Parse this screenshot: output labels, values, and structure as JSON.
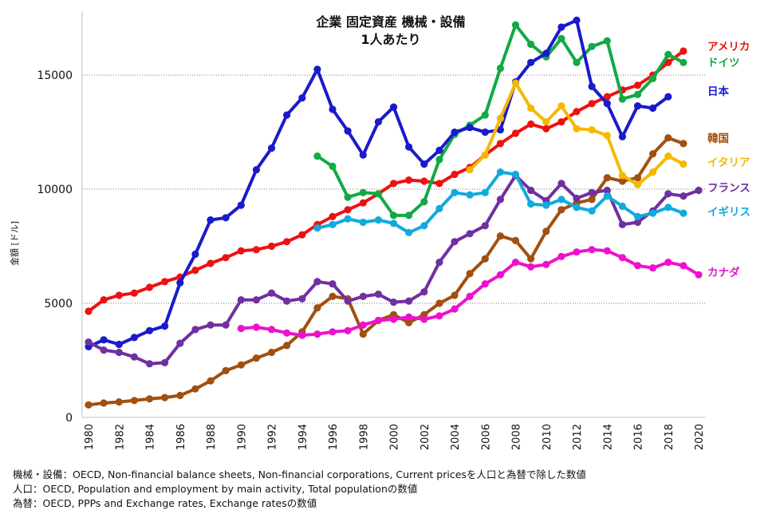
{
  "chart_data": {
    "type": "line",
    "title": [
      "企業 固定資産 機械・設備",
      "1人あたり"
    ],
    "ylabel": "金額 [ドル]",
    "xlabel": "",
    "xlim": [
      1980,
      2020
    ],
    "ylim": [
      0,
      17800
    ],
    "yticks": [
      0,
      5000,
      10000,
      15000
    ],
    "xticks": [
      1980,
      1982,
      1984,
      1986,
      1988,
      1990,
      1992,
      1994,
      1996,
      1998,
      2000,
      2002,
      2004,
      2006,
      2008,
      2010,
      2012,
      2014,
      2016,
      2018,
      2020
    ],
    "grid": "horizontal-dotted",
    "legend": "right (labels at line ends)",
    "series": [
      {
        "name": "アメリカ",
        "color": "#ee1111",
        "start": 1980,
        "values": [
          4650,
          5150,
          5350,
          5450,
          5700,
          5950,
          6150,
          6450,
          6750,
          7000,
          7300,
          7350,
          7500,
          7700,
          8000,
          8450,
          8800,
          9100,
          9400,
          9800,
          10250,
          10400,
          10350,
          10250,
          10650,
          10950,
          11500,
          12000,
          12450,
          12850,
          12650,
          12950,
          13400,
          13750,
          14050,
          14350,
          14550,
          15000,
          15550,
          16050
        ]
      },
      {
        "name": "ドイツ",
        "color": "#11aa44",
        "start": 1995,
        "values": [
          11450,
          11000,
          9650,
          9850,
          9800,
          8850,
          8850,
          9450,
          11300,
          12400,
          12800,
          13250,
          15300,
          17200,
          16350,
          15800,
          16600,
          15550,
          16250,
          16500,
          13950,
          14150,
          14850,
          15900,
          15550
        ]
      },
      {
        "name": "日本",
        "color": "#1a1acc",
        "start": 1980,
        "values": [
          3100,
          3400,
          3200,
          3500,
          3800,
          4000,
          5900,
          7150,
          8650,
          8750,
          9300,
          10850,
          11800,
          13250,
          14000,
          15250,
          13500,
          12550,
          11500,
          12950,
          13600,
          11850,
          11100,
          11700,
          12500,
          12700,
          12500,
          12600,
          14700,
          15550,
          15950,
          17100,
          17400,
          14500,
          13750,
          12300,
          13650,
          13550,
          14050
        ]
      },
      {
        "name": "韓国",
        "color": "#a05010",
        "start": 1980,
        "values": [
          550,
          630,
          680,
          740,
          810,
          870,
          960,
          1250,
          1600,
          2050,
          2300,
          2600,
          2850,
          3150,
          3750,
          4800,
          5300,
          5200,
          3650,
          4250,
          4500,
          4150,
          4500,
          5000,
          5350,
          6300,
          6950,
          7950,
          7750,
          6950,
          8150,
          9100,
          9400,
          9550,
          10500,
          10350,
          10500,
          11550,
          12250,
          12000
        ]
      },
      {
        "name": "イタリア",
        "color": "#f5b800",
        "start": 2005,
        "values": [
          10850,
          11500,
          13100,
          14650,
          13550,
          12950,
          13650,
          12650,
          12600,
          12350,
          10600,
          10200,
          10750,
          11450,
          11100
        ]
      },
      {
        "name": "フランス",
        "color": "#7030a0",
        "start": 1980,
        "values": [
          3300,
          2950,
          2850,
          2650,
          2350,
          2400,
          3250,
          3850,
          4050,
          4050,
          5150,
          5150,
          5450,
          5100,
          5200,
          5950,
          5850,
          5100,
          5300,
          5400,
          5050,
          5100,
          5500,
          6800,
          7700,
          8050,
          8400,
          9550,
          10600,
          9950,
          9500,
          10250,
          9600,
          9850,
          9950,
          8450,
          8550,
          9050,
          9800,
          9700,
          9950
        ]
      },
      {
        "name": "イギリス",
        "color": "#11aadd",
        "start": 1995,
        "values": [
          8300,
          8450,
          8700,
          8550,
          8650,
          8500,
          8100,
          8400,
          9150,
          9850,
          9750,
          9850,
          10750,
          10650,
          9350,
          9300,
          9550,
          9200,
          9050,
          9700,
          9250,
          8800,
          8950,
          9200,
          8950
        ]
      },
      {
        "name": "カナダ",
        "color": "#ee11cc",
        "start": 1990,
        "values": [
          3900,
          3950,
          3850,
          3700,
          3600,
          3650,
          3750,
          3800,
          4050,
          4250,
          4300,
          4400,
          4300,
          4450,
          4750,
          5300,
          5850,
          6250,
          6800,
          6600,
          6700,
          7050,
          7250,
          7350,
          7300,
          7000,
          6650,
          6550,
          6800,
          6650,
          6250
        ]
      }
    ]
  },
  "notes": [
    "機械・設備：OECD, Non-financial balance sheets, Non-financial corporations, Current pricesを人口と為替で除した数値",
    "人口：OECD, Population and employment by main activity, Total populationの数値",
    "為替：OECD, PPPs and Exchange rates, Exchange ratesの数値"
  ]
}
